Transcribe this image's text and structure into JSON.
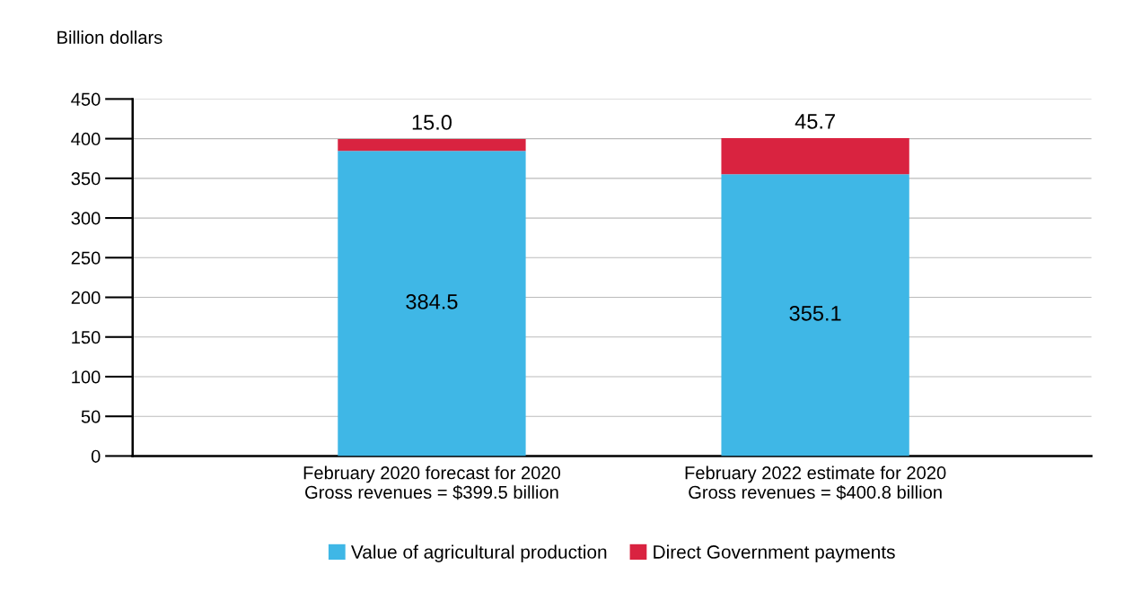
{
  "chart_data": {
    "type": "bar",
    "stacked": true,
    "ylabel": "Billion dollars",
    "categories": [
      "February 2020 forecast for 2020\nGross revenues = $399.5 billion",
      "February 2022 estimate for 2020\nGross revenues = $400.8 billion"
    ],
    "series": [
      {
        "name": "Value of agricultural production",
        "color": "#3fb7e6",
        "values": [
          384.5,
          355.1
        ],
        "value_labels": [
          "384.5",
          "355.1"
        ]
      },
      {
        "name": "Direct Government payments",
        "color": "#d92340",
        "values": [
          15.0,
          45.7
        ],
        "value_labels": [
          "15.0",
          "45.7"
        ]
      }
    ],
    "ylim": [
      0,
      450
    ],
    "yticks": [
      0,
      50,
      100,
      150,
      200,
      250,
      300,
      350,
      400,
      450
    ],
    "grid": "y",
    "legend": "bottom"
  }
}
